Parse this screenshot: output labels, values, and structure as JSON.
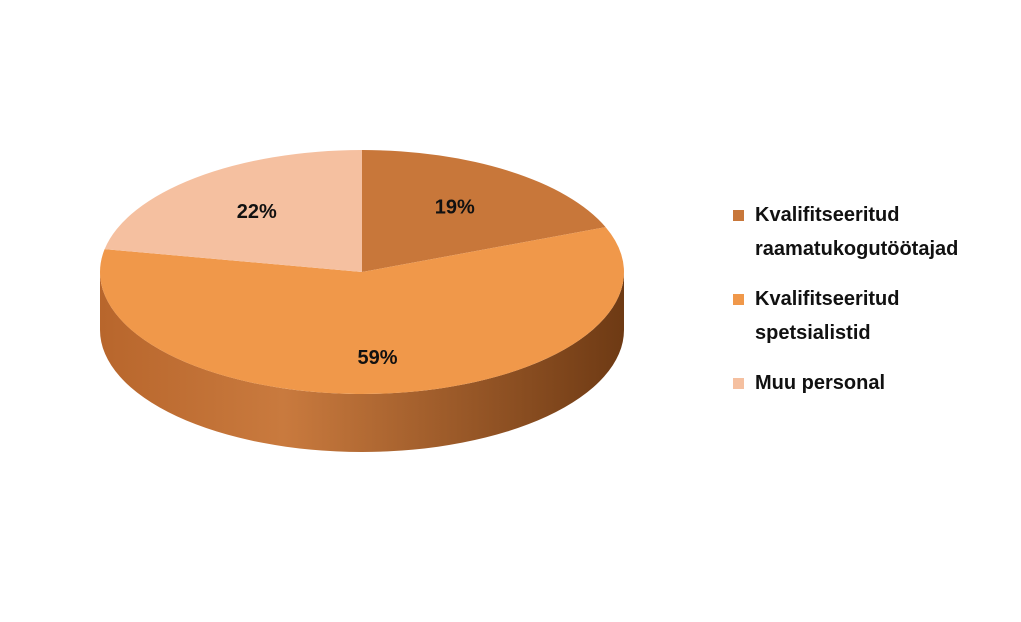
{
  "chart_data": {
    "type": "pie",
    "categories": [
      "Kvalifitseeritud raamatukogutöötajad",
      "Kvalifitseeritud spetsialistid",
      "Muu personal"
    ],
    "values": [
      19,
      59,
      22
    ],
    "value_labels": [
      "19%",
      "59%",
      "22%"
    ],
    "colors": [
      "#c8773a",
      "#f0984a",
      "#f5c0a0"
    ],
    "legend": "right"
  }
}
